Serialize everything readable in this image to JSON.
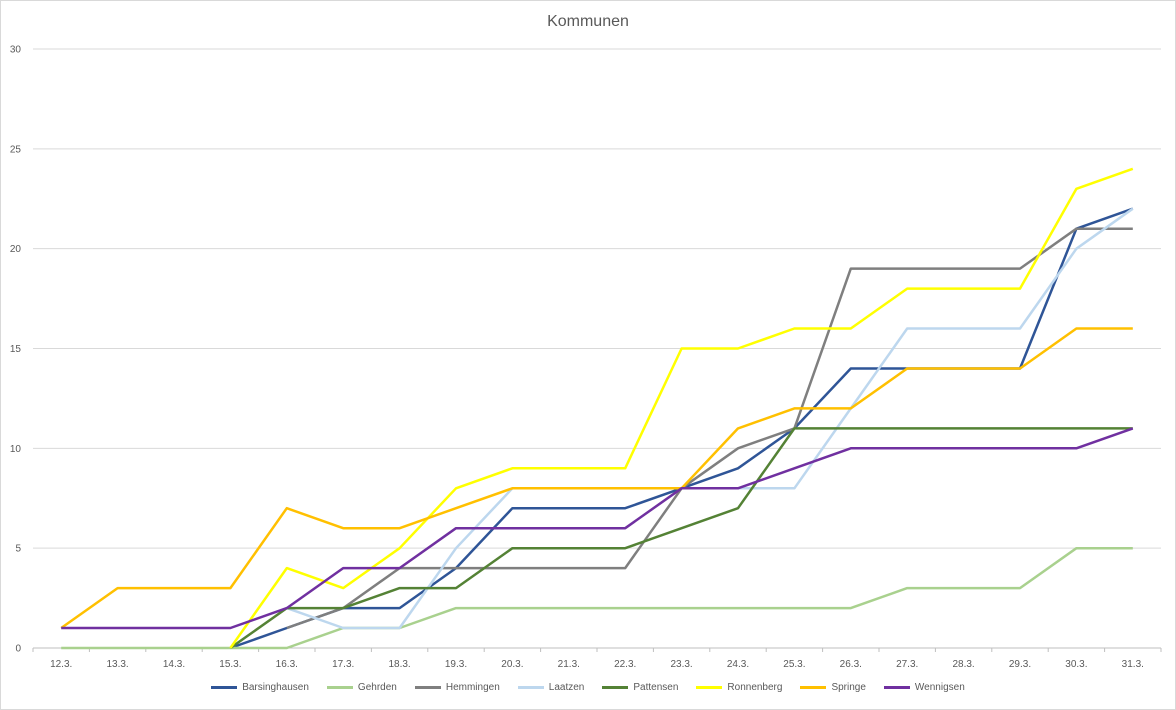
{
  "chart_data": {
    "type": "line",
    "title": "Kommunen",
    "xlabel": "",
    "ylabel": "",
    "ylim": [
      0,
      30
    ],
    "yticks": [
      "0",
      "5",
      "10",
      "15",
      "20",
      "25",
      "30"
    ],
    "grid": true,
    "legend_position": "bottom",
    "categories": [
      "12.3.",
      "13.3.",
      "14.3.",
      "15.3.",
      "16.3.",
      "17.3.",
      "18.3.",
      "19.3.",
      "20.3.",
      "21.3.",
      "22.3.",
      "23.3.",
      "24.3.",
      "25.3.",
      "26.3.",
      "27.3.",
      "28.3.",
      "29.3.",
      "30.3.",
      "31.3."
    ],
    "series": [
      {
        "name": "Barsinghausen",
        "color": "#2f5597",
        "values": [
          null,
          null,
          null,
          0,
          1,
          2,
          2,
          4,
          7,
          7,
          7,
          8,
          9,
          11,
          14,
          14,
          14,
          14,
          21,
          22
        ]
      },
      {
        "name": "Gehrden",
        "color": "#a9d18e",
        "values": [
          0,
          0,
          0,
          0,
          0,
          1,
          1,
          2,
          2,
          2,
          2,
          2,
          2,
          2,
          2,
          3,
          3,
          3,
          5,
          5
        ]
      },
      {
        "name": "Hemmingen",
        "color": "#7f7f7f",
        "values": [
          null,
          null,
          null,
          null,
          1,
          2,
          4,
          4,
          4,
          4,
          4,
          8,
          10,
          11,
          19,
          19,
          19,
          19,
          21,
          21
        ]
      },
      {
        "name": "Laatzen",
        "color": "#bdd7ee",
        "values": [
          null,
          null,
          null,
          null,
          2,
          1,
          1,
          5,
          8,
          8,
          8,
          8,
          8,
          8,
          12,
          16,
          16,
          16,
          20,
          22
        ]
      },
      {
        "name": "Pattensen",
        "color": "#548235",
        "values": [
          null,
          null,
          null,
          0,
          2,
          2,
          3,
          3,
          5,
          5,
          5,
          6,
          7,
          11,
          11,
          11,
          11,
          11,
          11,
          11
        ]
      },
      {
        "name": "Ronnenberg",
        "color": "#ffff00",
        "values": [
          null,
          null,
          null,
          0,
          4,
          3,
          5,
          8,
          9,
          9,
          9,
          15,
          15,
          16,
          16,
          18,
          18,
          18,
          23,
          24
        ]
      },
      {
        "name": "Springe",
        "color": "#ffc000",
        "values": [
          1,
          3,
          3,
          3,
          7,
          6,
          6,
          7,
          8,
          8,
          8,
          8,
          11,
          12,
          12,
          14,
          14,
          14,
          16,
          16
        ]
      },
      {
        "name": "Wennigsen",
        "color": "#7030a0",
        "values": [
          1,
          1,
          1,
          1,
          2,
          4,
          4,
          6,
          6,
          6,
          6,
          8,
          8,
          9,
          10,
          10,
          10,
          10,
          10,
          11
        ]
      }
    ]
  }
}
